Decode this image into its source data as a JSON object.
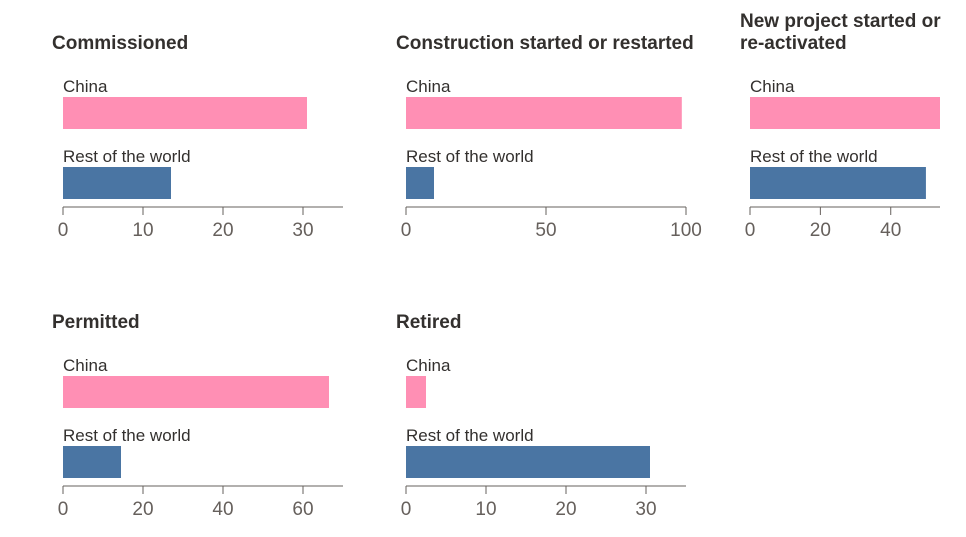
{
  "chart_data": [
    {
      "type": "bar",
      "orientation": "horizontal",
      "title": "Commissioned",
      "categories": [
        "China",
        "Rest of the world"
      ],
      "values": [
        30.5,
        13.5
      ],
      "colors": [
        "#ff8fb4",
        "#4a75a3"
      ],
      "xlim": [
        0,
        35
      ],
      "xticks": [
        0,
        10,
        20,
        30
      ]
    },
    {
      "type": "bar",
      "orientation": "horizontal",
      "title": "Construction started or restarted",
      "categories": [
        "China",
        "Rest of the world"
      ],
      "values": [
        98.5,
        10
      ],
      "colors": [
        "#ff8fb4",
        "#4a75a3"
      ],
      "xlim": [
        0,
        100
      ],
      "xticks": [
        0,
        50,
        100
      ]
    },
    {
      "type": "bar",
      "orientation": "horizontal",
      "title": [
        "New project started or",
        "re-activated"
      ],
      "categories": [
        "China",
        "Rest of the world"
      ],
      "values": [
        54,
        50
      ],
      "colors": [
        "#ff8fb4",
        "#4a75a3"
      ],
      "xlim": [
        0,
        54
      ],
      "xticks": [
        0,
        20,
        40
      ]
    },
    {
      "type": "bar",
      "orientation": "horizontal",
      "title": "Permitted",
      "categories": [
        "China",
        "Rest of the world"
      ],
      "values": [
        66.5,
        14.5
      ],
      "colors": [
        "#ff8fb4",
        "#4a75a3"
      ],
      "xlim": [
        0,
        70
      ],
      "xticks": [
        0,
        20,
        40,
        60
      ]
    },
    {
      "type": "bar",
      "orientation": "horizontal",
      "title": "Retired",
      "categories": [
        "China",
        "Rest of the world"
      ],
      "values": [
        2.5,
        30.5
      ],
      "colors": [
        "#ff8fb4",
        "#4a75a3"
      ],
      "xlim": [
        0,
        35
      ],
      "xticks": [
        0,
        10,
        20,
        30
      ]
    }
  ]
}
